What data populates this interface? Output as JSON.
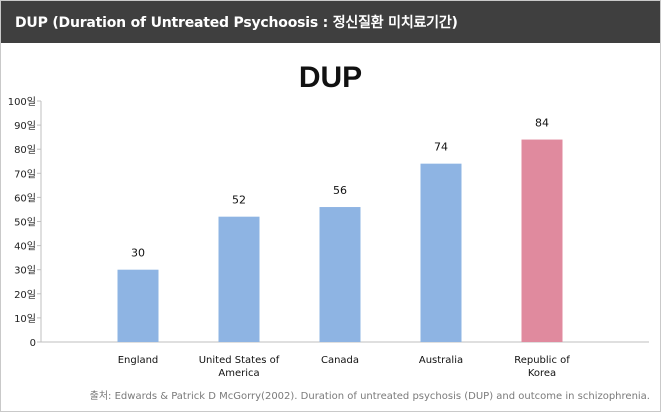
{
  "header": {
    "title": "DUP (Duration of Untreated Psychoosis : 정신질환 미치료기간)"
  },
  "source": "출처: Edwards & Patrick D McGorry(2002). Duration of untreated psychosis (DUP) and outcome in schizophrenia.",
  "chart_data": {
    "type": "bar",
    "title": "DUP",
    "categories": [
      "England",
      "United States of America",
      "Canada",
      "Australia",
      "Republic of Korea"
    ],
    "category_lines": [
      [
        "England"
      ],
      [
        "United States of",
        "America"
      ],
      [
        "Canada"
      ],
      [
        "Australia"
      ],
      [
        "Republic of",
        "Korea"
      ]
    ],
    "values": [
      30,
      52,
      56,
      74,
      84
    ],
    "data_labels": [
      "30",
      "52",
      "56",
      "74",
      "84"
    ],
    "ylim": [
      0,
      100
    ],
    "y_ticks": [
      "0",
      "10일",
      "20일",
      "30일",
      "40일",
      "50일",
      "60일",
      "70일",
      "80일",
      "90일",
      "100일"
    ],
    "xlabel": "",
    "ylabel": "",
    "grid": false,
    "legend": "none",
    "colors": {
      "default_bar": "#8eb4e3",
      "highlight_bar": "#e08a9e"
    },
    "highlight_index": 4
  }
}
